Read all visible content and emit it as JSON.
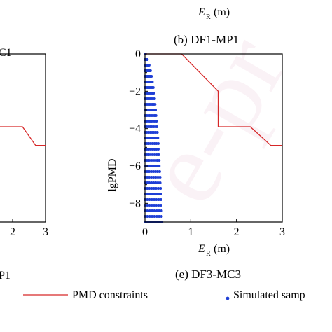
{
  "top_fragment": {
    "axis_label_main": "E",
    "axis_label_sub": "R",
    "axis_unit": "(m)"
  },
  "left_fragments": {
    "title_cut": "C1",
    "subtitle_cut": "P1"
  },
  "panel_b": {
    "title": "(b) DF1-MP1"
  },
  "panel_e": {
    "title": "(e) DF3-MC3"
  },
  "legend": {
    "items": [
      {
        "label": "PMD constraints",
        "color": "#d62728",
        "kind": "line"
      },
      {
        "label": "Simulated samp",
        "color": "#1f3fd6",
        "kind": "dot"
      }
    ]
  },
  "colors": {
    "constraint": "#d62728",
    "samples": "#1f3fd6",
    "watermark": "#f4e4ec"
  },
  "chart_data": [
    {
      "type": "line",
      "id": "left-cut-panel",
      "xlabel": "",
      "ylabel": "",
      "xlim": [
        null,
        3
      ],
      "ylim": [
        -9,
        0
      ],
      "xticks_visible": [
        "2",
        "3"
      ],
      "series": [
        {
          "kind": "constraint",
          "x": [
            2.3,
            2.7,
            3.0
          ],
          "y": [
            -3.9,
            -4.9,
            -4.9
          ]
        }
      ]
    },
    {
      "type": "scatter",
      "id": "panel-b",
      "title": "(b) DF1-MP1",
      "xlabel": "E_R (m)",
      "ylabel": "lgPMD",
      "xlim": [
        0,
        3
      ],
      "ylim": [
        -9,
        0
      ],
      "xticks": [
        0,
        1,
        2,
        3
      ],
      "yticks": [
        0,
        -2,
        -4,
        -6,
        -8
      ],
      "xtick_labels": [
        "0",
        "1",
        "2",
        "3"
      ],
      "ytick_labels": [
        "0",
        "−2",
        "−4",
        "−6",
        "−8"
      ],
      "series": [
        {
          "kind": "constraint",
          "x": [
            0,
            0.8,
            1.6,
            1.6,
            2.3,
            2.75,
            3.0
          ],
          "y": [
            0,
            0,
            -2.0,
            -3.9,
            -3.9,
            -4.9,
            -4.9
          ]
        },
        {
          "kind": "samples",
          "x_max_at_y": [
            [
              0.0,
              0.01
            ],
            [
              -0.3,
              0.05
            ],
            [
              -0.6,
              0.09
            ],
            [
              -0.9,
              0.12
            ],
            [
              -1.2,
              0.14
            ],
            [
              -1.5,
              0.16
            ],
            [
              -1.8,
              0.18
            ],
            [
              -2.1,
              0.19
            ],
            [
              -2.4,
              0.21
            ],
            [
              -2.7,
              0.22
            ],
            [
              -3.0,
              0.23
            ],
            [
              -3.3,
              0.24
            ],
            [
              -3.6,
              0.25
            ],
            [
              -3.9,
              0.26
            ],
            [
              -4.2,
              0.27
            ],
            [
              -4.5,
              0.28
            ],
            [
              -4.8,
              0.29
            ],
            [
              -5.1,
              0.29
            ],
            [
              -5.4,
              0.3
            ],
            [
              -5.7,
              0.31
            ],
            [
              -6.0,
              0.31
            ],
            [
              -6.3,
              0.32
            ],
            [
              -6.6,
              0.33
            ],
            [
              -6.9,
              0.33
            ],
            [
              -7.2,
              0.34
            ],
            [
              -7.5,
              0.34
            ],
            [
              -7.8,
              0.35
            ],
            [
              -8.1,
              0.35
            ],
            [
              -8.4,
              0.36
            ],
            [
              -8.7,
              0.36
            ],
            [
              -9.0,
              0.37
            ]
          ]
        }
      ]
    }
  ]
}
